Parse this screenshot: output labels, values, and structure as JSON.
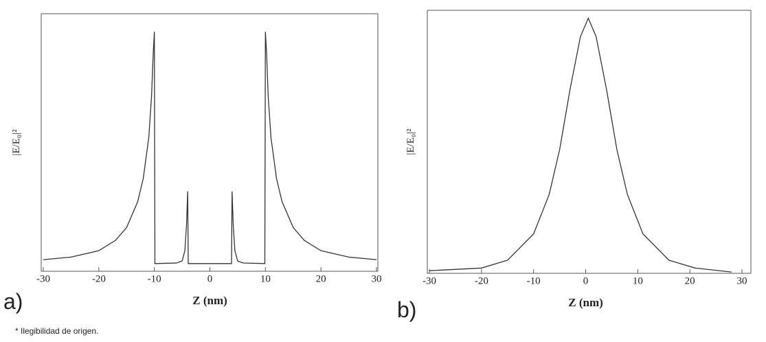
{
  "chart_data": [
    {
      "type": "line",
      "panel_label": "a)",
      "xlabel": "Z (nm)",
      "ylabel": "|E/E₀|²",
      "xlim": [
        -30,
        30
      ],
      "xticks": [
        -30,
        -20,
        -10,
        0,
        10,
        20,
        30
      ],
      "ylim": [
        0,
        1
      ],
      "series": [
        {
          "color": "#333333",
          "x": [
            -30,
            -25,
            -20,
            -17,
            -15,
            -13,
            -12,
            -11,
            -10.5,
            -10.2,
            -10,
            -9.9,
            -6,
            -5,
            -4.5,
            -4.2,
            -4,
            -3.9,
            0,
            3.9,
            4,
            4.2,
            4.5,
            5,
            6,
            9.9,
            10,
            10.2,
            10.5,
            11,
            12,
            13,
            15,
            17,
            20,
            25,
            30
          ],
          "values": [
            0.045,
            0.055,
            0.08,
            0.12,
            0.17,
            0.27,
            0.36,
            0.52,
            0.68,
            0.85,
            0.93,
            0.03,
            0.032,
            0.04,
            0.08,
            0.18,
            0.31,
            0.03,
            0.03,
            0.03,
            0.31,
            0.18,
            0.08,
            0.04,
            0.032,
            0.03,
            0.93,
            0.85,
            0.68,
            0.52,
            0.36,
            0.27,
            0.17,
            0.12,
            0.08,
            0.055,
            0.045
          ]
        }
      ]
    },
    {
      "type": "line",
      "panel_label": "b)",
      "xlabel": "Z (nm)",
      "ylabel": "|E/E₀|²",
      "xlim": [
        -30,
        30
      ],
      "xticks": [
        -30,
        -20,
        -10,
        0,
        10,
        20,
        30
      ],
      "ylim": [
        0,
        1
      ],
      "series": [
        {
          "color": "#333333",
          "x": [
            -30,
            -20,
            -15,
            -10,
            -7,
            -5,
            -3,
            -1,
            0.5,
            2,
            4,
            6,
            8,
            11,
            16,
            21,
            28
          ],
          "values": [
            0.01,
            0.02,
            0.05,
            0.15,
            0.3,
            0.47,
            0.7,
            0.9,
            0.97,
            0.9,
            0.7,
            0.47,
            0.3,
            0.15,
            0.05,
            0.02,
            0.005
          ]
        }
      ]
    }
  ],
  "note": "* Ilegibilidad de origen."
}
